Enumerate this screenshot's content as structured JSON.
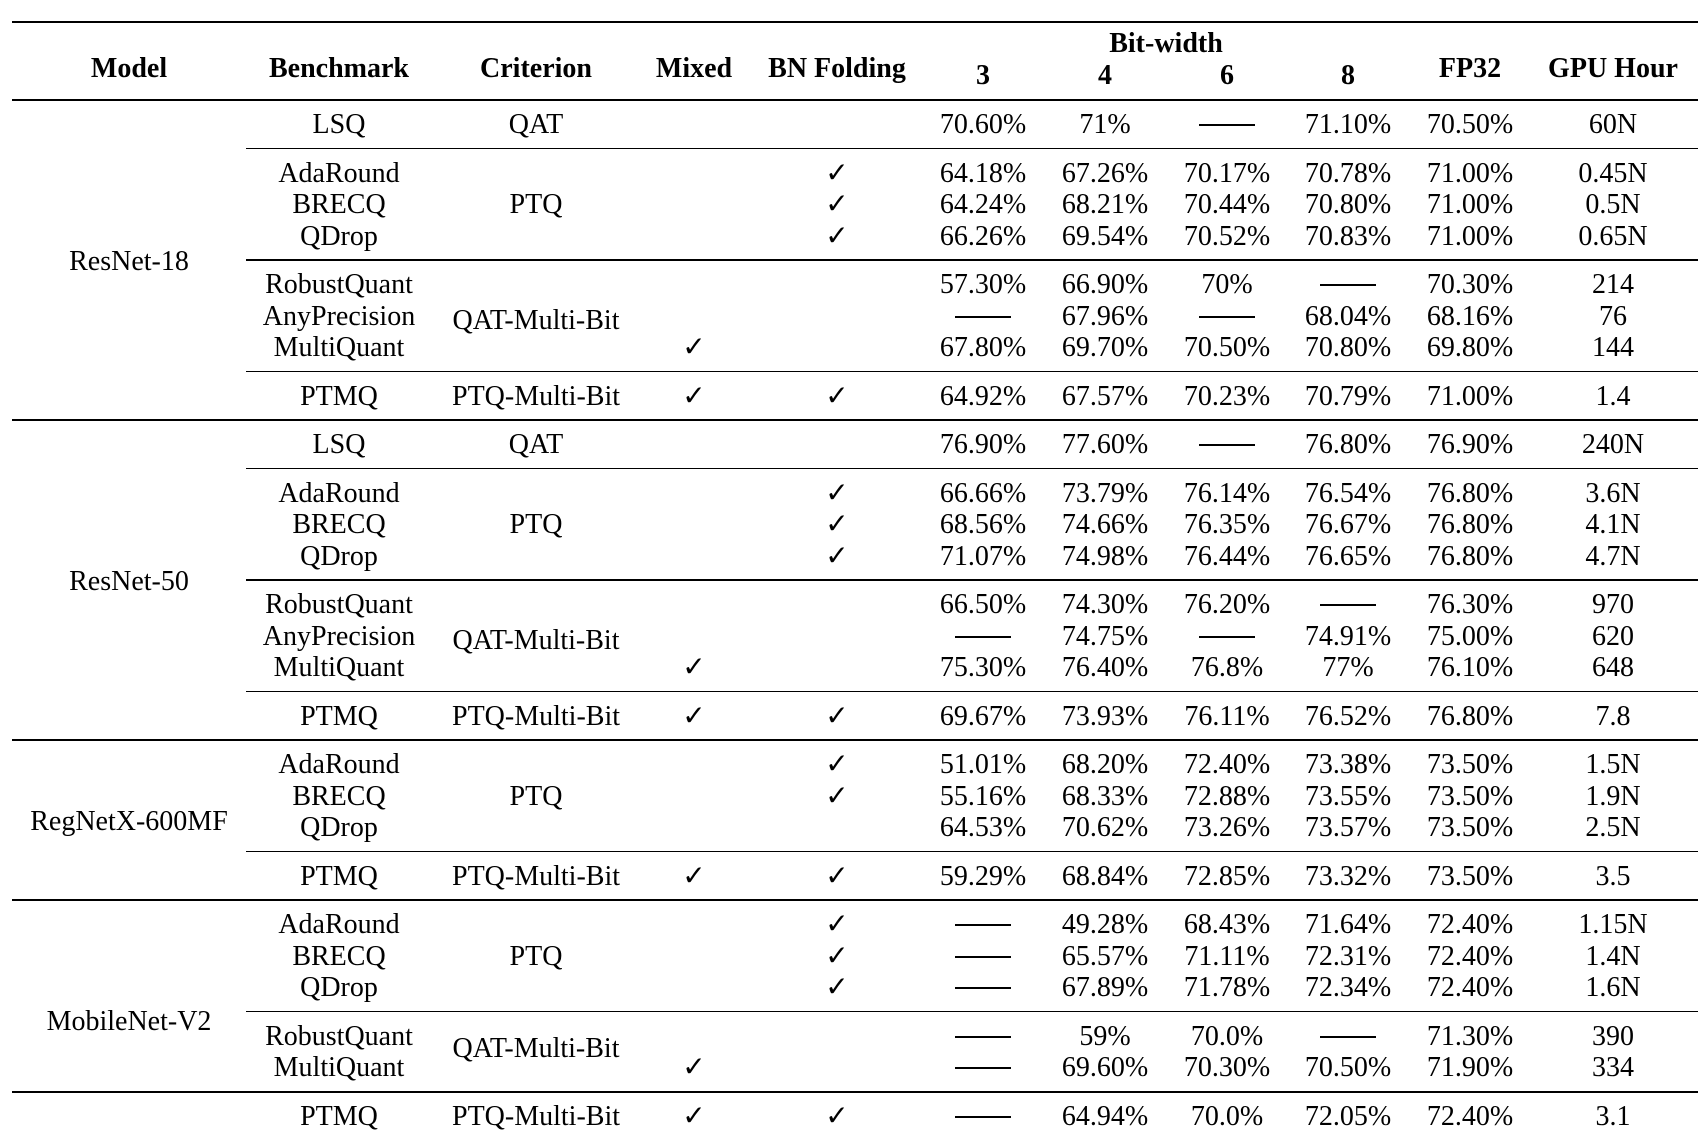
{
  "header": {
    "model": "Model",
    "benchmark": "Benchmark",
    "criterion": "Criterion",
    "mixed": "Mixed",
    "bn_folding": "BN Folding",
    "bit_width": "Bit-width",
    "bits": [
      "3",
      "4",
      "6",
      "8"
    ],
    "fp32": "FP32",
    "gpu_hour": "GPU Hour"
  },
  "check_mark": "✓",
  "missing_value": "——",
  "models": [
    {
      "name": "ResNet-18",
      "groups": [
        {
          "criterion": "QAT",
          "rows": [
            {
              "benchmark": "LSQ",
              "mixed": false,
              "bn_folding": false,
              "values": [
                "70.60%",
                "71%",
                null,
                "71.10%"
              ],
              "fp32": "70.50%",
              "gpu_hour": "60N"
            }
          ]
        },
        {
          "criterion": "PTQ",
          "rows": [
            {
              "benchmark": "AdaRound",
              "mixed": false,
              "bn_folding": true,
              "values": [
                "64.18%",
                "67.26%",
                "70.17%",
                "70.78%"
              ],
              "fp32": "71.00%",
              "gpu_hour": "0.45N"
            },
            {
              "benchmark": "BRECQ",
              "mixed": false,
              "bn_folding": true,
              "values": [
                "64.24%",
                "68.21%",
                "70.44%",
                "70.80%"
              ],
              "fp32": "71.00%",
              "gpu_hour": "0.5N"
            },
            {
              "benchmark": "QDrop",
              "mixed": false,
              "bn_folding": true,
              "values": [
                "66.26%",
                "69.54%",
                "70.52%",
                "70.83%"
              ],
              "fp32": "71.00%",
              "gpu_hour": "0.65N"
            }
          ]
        },
        {
          "criterion": "QAT-Multi-Bit",
          "rows": [
            {
              "benchmark": "RobustQuant",
              "mixed": false,
              "bn_folding": false,
              "values": [
                "57.30%",
                "66.90%",
                "70%",
                null
              ],
              "fp32": "70.30%",
              "gpu_hour": "214"
            },
            {
              "benchmark": "AnyPrecision",
              "mixed": false,
              "bn_folding": false,
              "values": [
                null,
                "67.96%",
                null,
                "68.04%"
              ],
              "fp32": "68.16%",
              "gpu_hour": "76"
            },
            {
              "benchmark": "MultiQuant",
              "mixed": true,
              "bn_folding": false,
              "values": [
                "67.80%",
                "69.70%",
                "70.50%",
                "70.80%"
              ],
              "fp32": "69.80%",
              "gpu_hour": "144"
            }
          ]
        },
        {
          "criterion": "PTQ-Multi-Bit",
          "rows": [
            {
              "benchmark": "PTMQ",
              "mixed": true,
              "bn_folding": true,
              "values": [
                "64.92%",
                "67.57%",
                "70.23%",
                "70.79%"
              ],
              "fp32": "71.00%",
              "gpu_hour": "1.4"
            }
          ]
        }
      ]
    },
    {
      "name": "ResNet-50",
      "groups": [
        {
          "criterion": "QAT",
          "rows": [
            {
              "benchmark": "LSQ",
              "mixed": false,
              "bn_folding": false,
              "values": [
                "76.90%",
                "77.60%",
                null,
                "76.80%"
              ],
              "fp32": "76.90%",
              "gpu_hour": "240N"
            }
          ]
        },
        {
          "criterion": "PTQ",
          "rows": [
            {
              "benchmark": "AdaRound",
              "mixed": false,
              "bn_folding": true,
              "values": [
                "66.66%",
                "73.79%",
                "76.14%",
                "76.54%"
              ],
              "fp32": "76.80%",
              "gpu_hour": "3.6N"
            },
            {
              "benchmark": "BRECQ",
              "mixed": false,
              "bn_folding": true,
              "values": [
                "68.56%",
                "74.66%",
                "76.35%",
                "76.67%"
              ],
              "fp32": "76.80%",
              "gpu_hour": "4.1N"
            },
            {
              "benchmark": "QDrop",
              "mixed": false,
              "bn_folding": true,
              "values": [
                "71.07%",
                "74.98%",
                "76.44%",
                "76.65%"
              ],
              "fp32": "76.80%",
              "gpu_hour": "4.7N"
            }
          ]
        },
        {
          "criterion": "QAT-Multi-Bit",
          "rows": [
            {
              "benchmark": "RobustQuant",
              "mixed": false,
              "bn_folding": false,
              "values": [
                "66.50%",
                "74.30%",
                "76.20%",
                null
              ],
              "fp32": "76.30%",
              "gpu_hour": "970"
            },
            {
              "benchmark": "AnyPrecision",
              "mixed": false,
              "bn_folding": false,
              "values": [
                null,
                "74.75%",
                null,
                "74.91%"
              ],
              "fp32": "75.00%",
              "gpu_hour": "620"
            },
            {
              "benchmark": "MultiQuant",
              "mixed": true,
              "bn_folding": false,
              "values": [
                "75.30%",
                "76.40%",
                "76.8%",
                "77%"
              ],
              "fp32": "76.10%",
              "gpu_hour": "648"
            }
          ]
        },
        {
          "criterion": "PTQ-Multi-Bit",
          "rows": [
            {
              "benchmark": "PTMQ",
              "mixed": true,
              "bn_folding": true,
              "values": [
                "69.67%",
                "73.93%",
                "76.11%",
                "76.52%"
              ],
              "fp32": "76.80%",
              "gpu_hour": "7.8"
            }
          ]
        }
      ]
    },
    {
      "name": "RegNetX-600MF",
      "groups": [
        {
          "criterion": "PTQ",
          "rows": [
            {
              "benchmark": "AdaRound",
              "mixed": false,
              "bn_folding": true,
              "values": [
                "51.01%",
                "68.20%",
                "72.40%",
                "73.38%"
              ],
              "fp32": "73.50%",
              "gpu_hour": "1.5N"
            },
            {
              "benchmark": "BRECQ",
              "mixed": false,
              "bn_folding": true,
              "values": [
                "55.16%",
                "68.33%",
                "72.88%",
                "73.55%"
              ],
              "fp32": "73.50%",
              "gpu_hour": "1.9N"
            },
            {
              "benchmark": "QDrop",
              "mixed": false,
              "bn_folding": false,
              "values": [
                "64.53%",
                "70.62%",
                "73.26%",
                "73.57%"
              ],
              "fp32": "73.50%",
              "gpu_hour": "2.5N"
            }
          ]
        },
        {
          "criterion": "PTQ-Multi-Bit",
          "rows": [
            {
              "benchmark": "PTMQ",
              "mixed": true,
              "bn_folding": true,
              "values": [
                "59.29%",
                "68.84%",
                "72.85%",
                "73.32%"
              ],
              "fp32": "73.50%",
              "gpu_hour": "3.5"
            }
          ]
        }
      ]
    },
    {
      "name": "MobileNet-V2",
      "groups": [
        {
          "criterion": "PTQ",
          "rows": [
            {
              "benchmark": "AdaRound",
              "mixed": false,
              "bn_folding": true,
              "values": [
                null,
                "49.28%",
                "68.43%",
                "71.64%"
              ],
              "fp32": "72.40%",
              "gpu_hour": "1.15N"
            },
            {
              "benchmark": "BRECQ",
              "mixed": false,
              "bn_folding": true,
              "values": [
                null,
                "65.57%",
                "71.11%",
                "72.31%"
              ],
              "fp32": "72.40%",
              "gpu_hour": "1.4N"
            },
            {
              "benchmark": "QDrop",
              "mixed": false,
              "bn_folding": true,
              "values": [
                null,
                "67.89%",
                "71.78%",
                "72.34%"
              ],
              "fp32": "72.40%",
              "gpu_hour": "1.6N"
            }
          ]
        },
        {
          "criterion": "QAT-Multi-Bit",
          "rows": [
            {
              "benchmark": "RobustQuant",
              "mixed": false,
              "bn_folding": false,
              "values": [
                null,
                "59%",
                "70.0%",
                null
              ],
              "fp32": "71.30%",
              "gpu_hour": "390"
            },
            {
              "benchmark": "MultiQuant",
              "mixed": true,
              "bn_folding": false,
              "values": [
                null,
                "69.60%",
                "70.30%",
                "70.50%"
              ],
              "fp32": "71.90%",
              "gpu_hour": "334"
            }
          ]
        },
        {
          "criterion": "PTQ-Multi-Bit",
          "rows": [
            {
              "benchmark": "PTMQ",
              "mixed": true,
              "bn_folding": true,
              "values": [
                null,
                "64.94%",
                "70.0%",
                "72.05%"
              ],
              "fp32": "72.40%",
              "gpu_hour": "3.1"
            }
          ]
        }
      ]
    }
  ]
}
